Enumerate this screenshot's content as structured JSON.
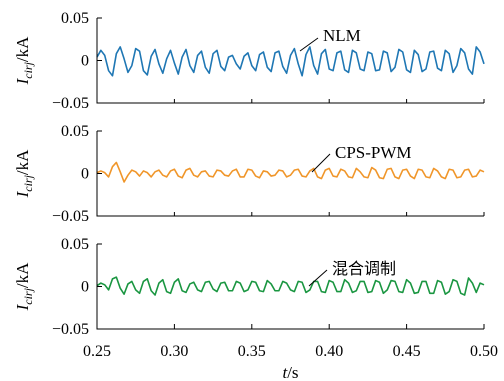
{
  "chart_data": [
    {
      "type": "line",
      "xlim": [
        0.25,
        0.5
      ],
      "ylim": [
        -0.05,
        0.05
      ],
      "yticks": [
        0.05,
        0,
        -0.05
      ],
      "ytick_labels": [
        "0.05",
        "0",
        "−0.05"
      ],
      "ylabel": {
        "main": "I",
        "sub": "cirj",
        "unit": "/kA"
      },
      "annotation": "NLM",
      "series": [
        {
          "color": "#1f77b4",
          "x": [
            0.25,
            0.2525,
            0.255,
            0.2575,
            0.26,
            0.2625,
            0.265,
            0.2675,
            0.27,
            0.2725,
            0.275,
            0.2775,
            0.28,
            0.2825,
            0.285,
            0.2875,
            0.29,
            0.2925,
            0.295,
            0.2975,
            0.3,
            0.3025,
            0.305,
            0.3075,
            0.31,
            0.3125,
            0.315,
            0.3175,
            0.32,
            0.3225,
            0.325,
            0.3275,
            0.33,
            0.3325,
            0.335,
            0.3375,
            0.34,
            0.3425,
            0.345,
            0.3475,
            0.35,
            0.3525,
            0.355,
            0.3575,
            0.36,
            0.3625,
            0.365,
            0.3675,
            0.37,
            0.3725,
            0.375,
            0.3775,
            0.38,
            0.3825,
            0.385,
            0.3875,
            0.39,
            0.3925,
            0.395,
            0.3975,
            0.4,
            0.4025,
            0.405,
            0.4075,
            0.41,
            0.4125,
            0.415,
            0.4175,
            0.42,
            0.4225,
            0.425,
            0.4275,
            0.43,
            0.4325,
            0.435,
            0.4375,
            0.44,
            0.4425,
            0.445,
            0.4475,
            0.45,
            0.4525,
            0.455,
            0.4575,
            0.46,
            0.4625,
            0.465,
            0.4675,
            0.47,
            0.4725,
            0.475,
            0.4775,
            0.48,
            0.4825,
            0.485,
            0.4875,
            0.49,
            0.4925,
            0.495,
            0.4975,
            0.5
          ],
          "y": [
            0.004,
            0.012,
            0.006,
            -0.012,
            -0.018,
            0.008,
            0.016,
            0.002,
            -0.014,
            -0.006,
            0.014,
            0.011,
            -0.012,
            -0.017,
            0.005,
            0.013,
            -0.004,
            -0.015,
            0.002,
            0.012,
            -0.003,
            -0.016,
            0.004,
            0.013,
            -0.006,
            -0.014,
            0.006,
            0.011,
            -0.008,
            -0.015,
            0.008,
            0.012,
            -0.007,
            -0.012,
            0.004,
            0.006,
            -0.004,
            -0.01,
            0.005,
            0.009,
            -0.006,
            -0.012,
            0.007,
            0.01,
            -0.008,
            -0.013,
            0.009,
            0.011,
            -0.007,
            -0.015,
            0.006,
            0.014,
            -0.004,
            -0.018,
            0.007,
            0.016,
            -0.006,
            -0.016,
            0.008,
            0.013,
            -0.01,
            -0.012,
            0.009,
            0.011,
            -0.011,
            -0.014,
            0.012,
            0.009,
            -0.01,
            -0.012,
            0.01,
            0.008,
            -0.012,
            -0.011,
            0.011,
            0.009,
            -0.013,
            -0.008,
            0.013,
            0.01,
            -0.011,
            -0.014,
            0.012,
            0.007,
            -0.013,
            -0.01,
            0.01,
            0.011,
            -0.009,
            -0.012,
            0.012,
            0.008,
            -0.014,
            -0.006,
            0.014,
            0.009,
            -0.01,
            -0.016,
            0.016,
            0.01,
            -0.004
          ]
        }
      ]
    },
    {
      "type": "line",
      "xlim": [
        0.25,
        0.5
      ],
      "ylim": [
        -0.05,
        0.05
      ],
      "yticks": [
        0.05,
        0,
        -0.05
      ],
      "ytick_labels": [
        "0.05",
        "0",
        "−0.05"
      ],
      "ylabel": {
        "main": "I",
        "sub": "cirj",
        "unit": "/kA"
      },
      "annotation": "CPS-PWM",
      "series": [
        {
          "color": "#f0962a",
          "x": [
            0.25,
            0.2525,
            0.255,
            0.2575,
            0.26,
            0.2625,
            0.265,
            0.2675,
            0.27,
            0.2725,
            0.275,
            0.2775,
            0.28,
            0.2825,
            0.285,
            0.2875,
            0.29,
            0.2925,
            0.295,
            0.2975,
            0.3,
            0.3025,
            0.305,
            0.3075,
            0.31,
            0.3125,
            0.315,
            0.3175,
            0.32,
            0.3225,
            0.325,
            0.3275,
            0.33,
            0.3325,
            0.335,
            0.3375,
            0.34,
            0.3425,
            0.345,
            0.3475,
            0.35,
            0.3525,
            0.355,
            0.3575,
            0.36,
            0.3625,
            0.365,
            0.3675,
            0.37,
            0.3725,
            0.375,
            0.3775,
            0.38,
            0.3825,
            0.385,
            0.3875,
            0.39,
            0.3925,
            0.395,
            0.3975,
            0.4,
            0.4025,
            0.405,
            0.4075,
            0.41,
            0.4125,
            0.415,
            0.4175,
            0.42,
            0.4225,
            0.425,
            0.4275,
            0.43,
            0.4325,
            0.435,
            0.4375,
            0.44,
            0.4425,
            0.445,
            0.4475,
            0.45,
            0.4525,
            0.455,
            0.4575,
            0.46,
            0.4625,
            0.465,
            0.4675,
            0.47,
            0.4725,
            0.475,
            0.4775,
            0.48,
            0.4825,
            0.485,
            0.4875,
            0.49,
            0.4925,
            0.495,
            0.4975,
            0.5
          ],
          "y": [
            0.001,
            0.003,
            0.001,
            -0.004,
            0.008,
            0.013,
            0.002,
            -0.01,
            -0.002,
            0.004,
            0.002,
            -0.003,
            0.003,
            0.001,
            -0.004,
            0.002,
            0.004,
            -0.002,
            -0.004,
            0.003,
            0.005,
            -0.003,
            -0.005,
            0.004,
            0.006,
            -0.002,
            -0.004,
            0.002,
            0.003,
            -0.003,
            -0.004,
            0.004,
            0.003,
            -0.002,
            -0.003,
            0.003,
            0.005,
            -0.004,
            -0.004,
            0.005,
            0.004,
            -0.003,
            -0.005,
            0.003,
            0.002,
            -0.003,
            -0.002,
            0.004,
            0.003,
            -0.004,
            -0.002,
            0.004,
            0.005,
            -0.003,
            -0.004,
            0.003,
            0.006,
            -0.004,
            -0.006,
            0.004,
            0.006,
            -0.003,
            -0.004,
            0.005,
            0.003,
            -0.004,
            -0.005,
            0.006,
            0.002,
            -0.004,
            -0.005,
            0.007,
            0.004,
            -0.005,
            -0.006,
            0.005,
            0.006,
            -0.004,
            -0.006,
            0.004,
            0.005,
            -0.003,
            -0.006,
            0.005,
            0.004,
            -0.004,
            -0.005,
            0.006,
            0.003,
            -0.004,
            -0.006,
            0.005,
            0.004,
            -0.005,
            -0.004,
            0.004,
            0.005,
            -0.004,
            -0.003,
            0.004,
            0.002
          ]
        }
      ]
    },
    {
      "type": "line",
      "xlim": [
        0.25,
        0.5
      ],
      "ylim": [
        -0.05,
        0.05
      ],
      "yticks": [
        0.05,
        0,
        -0.05
      ],
      "ytick_labels": [
        "0.05",
        "0",
        "−0.05"
      ],
      "xticks": [
        0.25,
        0.3,
        0.35,
        0.4,
        0.45,
        0.5
      ],
      "xtick_labels": [
        "0.25",
        "0.30",
        "0.35",
        "0.40",
        "0.45",
        "0.50"
      ],
      "xlabel": {
        "main": "t",
        "unit": "/s"
      },
      "ylabel": {
        "main": "I",
        "sub": "cirj",
        "unit": "/kA"
      },
      "annotation": "混合调制",
      "series": [
        {
          "color": "#1a9641",
          "x": [
            0.25,
            0.2525,
            0.255,
            0.2575,
            0.26,
            0.2625,
            0.265,
            0.2675,
            0.27,
            0.2725,
            0.275,
            0.2775,
            0.28,
            0.2825,
            0.285,
            0.2875,
            0.29,
            0.2925,
            0.295,
            0.2975,
            0.3,
            0.3025,
            0.305,
            0.3075,
            0.31,
            0.3125,
            0.315,
            0.3175,
            0.32,
            0.3225,
            0.325,
            0.3275,
            0.33,
            0.3325,
            0.335,
            0.3375,
            0.34,
            0.3425,
            0.345,
            0.3475,
            0.35,
            0.3525,
            0.355,
            0.3575,
            0.36,
            0.3625,
            0.365,
            0.3675,
            0.37,
            0.3725,
            0.375,
            0.3775,
            0.38,
            0.3825,
            0.385,
            0.3875,
            0.39,
            0.3925,
            0.395,
            0.3975,
            0.4,
            0.4025,
            0.405,
            0.4075,
            0.41,
            0.4125,
            0.415,
            0.4175,
            0.42,
            0.4225,
            0.425,
            0.4275,
            0.43,
            0.4325,
            0.435,
            0.4375,
            0.44,
            0.4425,
            0.445,
            0.4475,
            0.45,
            0.4525,
            0.455,
            0.4575,
            0.46,
            0.4625,
            0.465,
            0.4675,
            0.47,
            0.4725,
            0.475,
            0.4775,
            0.48,
            0.4825,
            0.485,
            0.4875,
            0.49,
            0.4925,
            0.495,
            0.4975,
            0.5
          ],
          "y": [
            0.001,
            0.004,
            0.002,
            -0.004,
            0.009,
            0.011,
            -0.002,
            -0.009,
            0.003,
            0.006,
            -0.004,
            -0.008,
            0.006,
            0.009,
            -0.005,
            -0.01,
            0.004,
            0.008,
            -0.006,
            -0.008,
            0.005,
            0.009,
            -0.005,
            -0.007,
            0.003,
            0.005,
            -0.004,
            -0.006,
            0.005,
            0.006,
            -0.003,
            -0.006,
            0.004,
            0.005,
            -0.005,
            -0.005,
            0.006,
            0.004,
            -0.006,
            -0.004,
            0.006,
            0.005,
            -0.005,
            -0.006,
            0.007,
            0.003,
            -0.005,
            -0.005,
            0.006,
            0.004,
            -0.004,
            -0.006,
            0.006,
            0.005,
            -0.007,
            -0.004,
            0.006,
            0.006,
            -0.006,
            -0.007,
            0.007,
            0.005,
            -0.006,
            -0.006,
            0.008,
            0.004,
            -0.007,
            -0.005,
            0.006,
            0.006,
            -0.007,
            -0.006,
            0.007,
            0.005,
            -0.008,
            -0.004,
            0.007,
            0.006,
            -0.006,
            -0.007,
            0.008,
            0.004,
            -0.008,
            -0.007,
            0.006,
            0.006,
            -0.008,
            -0.008,
            0.007,
            0.005,
            -0.009,
            -0.006,
            0.008,
            0.006,
            -0.008,
            -0.01,
            0.01,
            0.004,
            -0.007,
            0.004,
            0.002
          ]
        }
      ]
    }
  ]
}
